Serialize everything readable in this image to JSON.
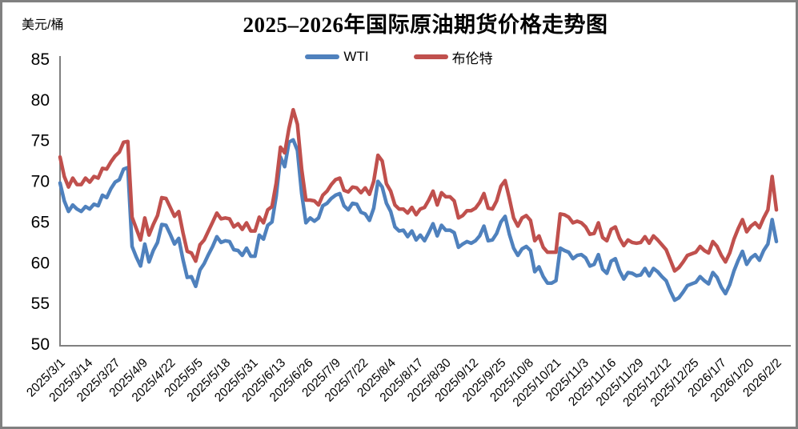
{
  "chart_data": {
    "type": "line",
    "title": "2025–2026年国际原油期货价格走势图",
    "y_axis_title": "美元/桶",
    "ylim": [
      50,
      85
    ],
    "y_ticks": [
      85,
      80,
      75,
      70,
      65,
      60,
      55,
      50
    ],
    "x_tick_labels": [
      "2025/3/1",
      "2025/3/14",
      "2025/3/27",
      "2025/4/9",
      "2025/4/22",
      "2025/5/5",
      "2025/5/18",
      "2025/5/31",
      "2025/6/13",
      "2025/6/26",
      "2025/7/9",
      "2025/7/22",
      "2025/8/4",
      "2025/8/17",
      "2025/8/30",
      "2025/9/12",
      "2025/9/25",
      "2025/10/8",
      "2025/10/21",
      "2025/11/3",
      "2025/11/16",
      "2025/11/29",
      "2025/12/12",
      "2025/12/25",
      "2026/1/7",
      "2026/1/20",
      "2026/2/2"
    ],
    "legend_position": "top",
    "grid": false,
    "axis_color": "#808080",
    "text_color": "#000000",
    "series": [
      {
        "name": "WTI",
        "color": "#4F81BD",
        "values": [
          69.8,
          67.6,
          66.3,
          67.1,
          66.6,
          66.3,
          66.9,
          66.6,
          67.2,
          67.0,
          68.3,
          68.0,
          69.1,
          69.9,
          70.2,
          71.5,
          71.7,
          62.0,
          60.7,
          59.6,
          62.3,
          60.1,
          61.5,
          62.5,
          64.7,
          64.6,
          63.5,
          62.3,
          63.0,
          60.4,
          58.2,
          58.3,
          57.1,
          59.1,
          59.9,
          61.0,
          62.0,
          63.2,
          62.5,
          62.7,
          62.6,
          61.6,
          61.5,
          60.9,
          61.8,
          60.8,
          60.8,
          63.4,
          62.9,
          64.6,
          65.0,
          68.2,
          73.0,
          71.8,
          74.8,
          75.1,
          73.8,
          68.5,
          64.9,
          65.5,
          65.1,
          65.5,
          67.0,
          67.3,
          67.9,
          68.3,
          68.5,
          67.0,
          66.5,
          67.3,
          67.2,
          66.2,
          66.0,
          65.2,
          66.7,
          70.0,
          69.3,
          67.3,
          66.3,
          64.4,
          63.9,
          64.0,
          63.2,
          63.9,
          62.8,
          63.4,
          62.7,
          63.7,
          64.8,
          63.3,
          64.6,
          64.0,
          64.0,
          63.7,
          61.9,
          62.3,
          62.6,
          62.4,
          62.7,
          63.3,
          64.5,
          62.7,
          62.8,
          63.6,
          65.0,
          65.7,
          63.5,
          61.8,
          60.9,
          61.7,
          62.0,
          61.5,
          58.9,
          59.5,
          58.3,
          57.5,
          57.5,
          57.8,
          61.8,
          61.5,
          61.3,
          60.5,
          60.9,
          61.0,
          60.6,
          59.6,
          59.8,
          61.0,
          59.2,
          58.7,
          60.2,
          60.5,
          59.0,
          58.0,
          58.8,
          58.7,
          58.4,
          58.5,
          59.3,
          58.4,
          59.3,
          58.9,
          58.3,
          57.8,
          56.5,
          55.4,
          55.7,
          56.4,
          57.2,
          57.4,
          57.6,
          58.3,
          57.8,
          57.4,
          58.8,
          58.2,
          57.0,
          56.2,
          57.3,
          59.0,
          60.3,
          61.4,
          59.8,
          60.6,
          61.0,
          60.3,
          61.5,
          62.3,
          65.3,
          62.6
        ]
      },
      {
        "name": "布伦特",
        "color": "#C0504D",
        "values": [
          73.0,
          70.6,
          69.3,
          70.4,
          69.6,
          69.6,
          70.4,
          69.9,
          70.6,
          70.4,
          71.6,
          71.5,
          72.4,
          73.1,
          73.6,
          74.8,
          74.9,
          65.6,
          64.2,
          62.8,
          65.5,
          63.4,
          64.7,
          65.8,
          68.0,
          67.9,
          66.8,
          65.7,
          66.3,
          63.7,
          61.4,
          61.2,
          60.2,
          62.2,
          62.8,
          63.9,
          65.0,
          66.1,
          65.4,
          65.5,
          65.4,
          64.4,
          64.8,
          64.1,
          64.9,
          63.9,
          63.9,
          65.6,
          64.9,
          66.5,
          66.9,
          69.8,
          74.2,
          73.5,
          76.5,
          78.8,
          77.0,
          71.5,
          67.7,
          67.7,
          67.6,
          67.1,
          68.3,
          68.8,
          69.6,
          70.2,
          70.4,
          68.9,
          68.7,
          69.3,
          69.2,
          68.6,
          69.2,
          68.4,
          70.0,
          73.2,
          72.5,
          69.7,
          68.8,
          67.1,
          66.6,
          66.6,
          66.1,
          66.8,
          65.9,
          66.6,
          66.8,
          67.7,
          68.8,
          67.1,
          68.6,
          68.1,
          68.1,
          67.6,
          65.5,
          65.8,
          66.4,
          66.4,
          66.7,
          67.4,
          68.5,
          66.7,
          66.6,
          67.6,
          69.4,
          70.1,
          67.9,
          65.5,
          64.5,
          65.5,
          65.8,
          65.2,
          62.7,
          63.3,
          61.9,
          61.3,
          61.3,
          61.3,
          66.0,
          65.9,
          65.6,
          64.9,
          65.1,
          64.9,
          64.4,
          63.5,
          63.6,
          64.9,
          63.1,
          62.7,
          64.1,
          64.4,
          63.0,
          62.1,
          62.8,
          62.5,
          62.4,
          62.5,
          63.2,
          62.4,
          63.3,
          62.8,
          62.2,
          61.6,
          60.3,
          59.0,
          59.4,
          60.1,
          60.9,
          61.1,
          61.3,
          62.0,
          61.5,
          61.2,
          62.6,
          62.0,
          60.9,
          60.1,
          61.2,
          62.9,
          64.2,
          65.3,
          63.8,
          64.5,
          64.9,
          64.3,
          65.5,
          66.5,
          70.6,
          66.5
        ]
      }
    ]
  }
}
